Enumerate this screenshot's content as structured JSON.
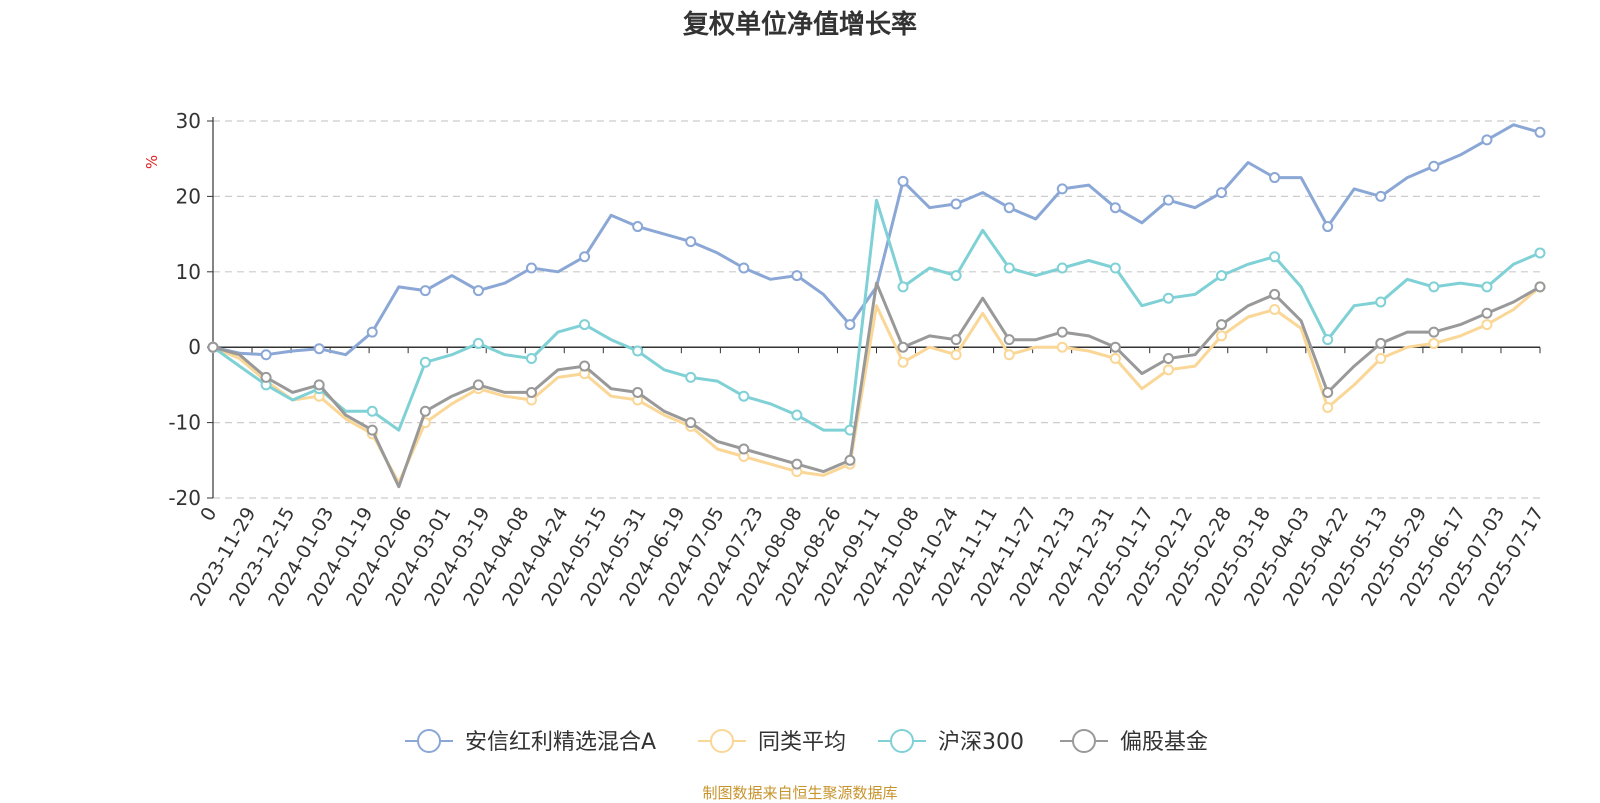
{
  "chart_data": {
    "type": "line",
    "title": "复权单位净值增长率",
    "ylabel": "%",
    "xlabel": "",
    "ylim": [
      -20,
      30
    ],
    "yticks": [
      -20,
      -10,
      0,
      10,
      20,
      30
    ],
    "grid": true,
    "legend_position": "bottom",
    "source": "制图数据来自恒生聚源数据库",
    "x_tick_labels": [
      "0",
      "2023-11-29",
      "2023-12-15",
      "2024-01-03",
      "2024-01-19",
      "2024-02-06",
      "2024-03-01",
      "2024-03-19",
      "2024-04-08",
      "2024-04-24",
      "2024-05-15",
      "2024-05-31",
      "2024-06-19",
      "2024-07-05",
      "2024-07-23",
      "2024-08-08",
      "2024-08-26",
      "2024-09-11",
      "2024-10-08",
      "2024-10-24",
      "2024-11-11",
      "2024-11-27",
      "2024-12-13",
      "2024-12-31",
      "2025-01-17",
      "2025-02-12",
      "2025-02-28",
      "2025-03-18",
      "2025-04-03",
      "2025-04-22",
      "2025-05-13",
      "2025-05-29",
      "2025-06-17",
      "2025-07-03",
      "2025-07-17"
    ],
    "series": [
      {
        "name": "安信红利精选混合A",
        "color": "#8ba7d6",
        "values": [
          0,
          -0.8,
          -1.0,
          -0.5,
          -0.2,
          -1.0,
          2.0,
          8.0,
          7.5,
          9.5,
          7.5,
          8.5,
          10.5,
          10.0,
          12.0,
          17.5,
          16.0,
          15.0,
          14.0,
          12.5,
          10.5,
          9.0,
          9.5,
          7.0,
          3.0,
          8.0,
          22.0,
          18.5,
          19.0,
          20.5,
          18.5,
          17.0,
          21.0,
          21.5,
          18.5,
          16.5,
          19.5,
          18.5,
          20.5,
          24.5,
          22.5,
          22.5,
          16.0,
          21.0,
          20.0,
          22.5,
          24.0,
          25.5,
          27.5,
          29.5,
          28.5
        ]
      },
      {
        "name": "同类平均",
        "color": "#fad797",
        "values": [
          0,
          -1.5,
          -4.5,
          -7.0,
          -6.5,
          -9.5,
          -11.5,
          -18.0,
          -10.0,
          -7.5,
          -5.5,
          -6.5,
          -7.0,
          -4.0,
          -3.5,
          -6.5,
          -7.0,
          -9.0,
          -10.5,
          -13.5,
          -14.5,
          -15.5,
          -16.5,
          -17.0,
          -15.5,
          5.5,
          -2.0,
          0.0,
          -1.0,
          4.5,
          -1.0,
          0.0,
          0.0,
          -0.5,
          -1.5,
          -5.5,
          -3.0,
          -2.5,
          1.5,
          4.0,
          5.0,
          2.5,
          -8.0,
          -5.0,
          -1.5,
          0.0,
          0.5,
          1.5,
          3.0,
          5.0,
          8.0
        ]
      },
      {
        "name": "沪深300",
        "color": "#7fd1d6",
        "values": [
          0,
          -2.5,
          -5.0,
          -7.0,
          -5.5,
          -8.5,
          -8.5,
          -11.0,
          -2.0,
          -1.0,
          0.5,
          -1.0,
          -1.5,
          2.0,
          3.0,
          1.0,
          -0.5,
          -3.0,
          -4.0,
          -4.5,
          -6.5,
          -7.5,
          -9.0,
          -11.0,
          -11.0,
          19.5,
          8.0,
          10.5,
          9.5,
          15.5,
          10.5,
          9.5,
          10.5,
          11.5,
          10.5,
          5.5,
          6.5,
          7.0,
          9.5,
          11.0,
          12.0,
          8.0,
          1.0,
          5.5,
          6.0,
          9.0,
          8.0,
          8.5,
          8.0,
          11.0,
          12.5
        ]
      },
      {
        "name": "偏股基金",
        "color": "#999999",
        "values": [
          0,
          -1.0,
          -4.0,
          -6.0,
          -5.0,
          -9.0,
          -11.0,
          -18.5,
          -8.5,
          -6.5,
          -5.0,
          -6.0,
          -6.0,
          -3.0,
          -2.5,
          -5.5,
          -6.0,
          -8.5,
          -10.0,
          -12.5,
          -13.5,
          -14.5,
          -15.5,
          -16.5,
          -15.0,
          8.5,
          0.0,
          1.5,
          1.0,
          6.5,
          1.0,
          1.0,
          2.0,
          1.5,
          0.0,
          -3.5,
          -1.5,
          -1.0,
          3.0,
          5.5,
          7.0,
          3.5,
          -6.0,
          -2.5,
          0.5,
          2.0,
          2.0,
          3.0,
          4.5,
          6.0,
          8.0
        ]
      }
    ]
  }
}
